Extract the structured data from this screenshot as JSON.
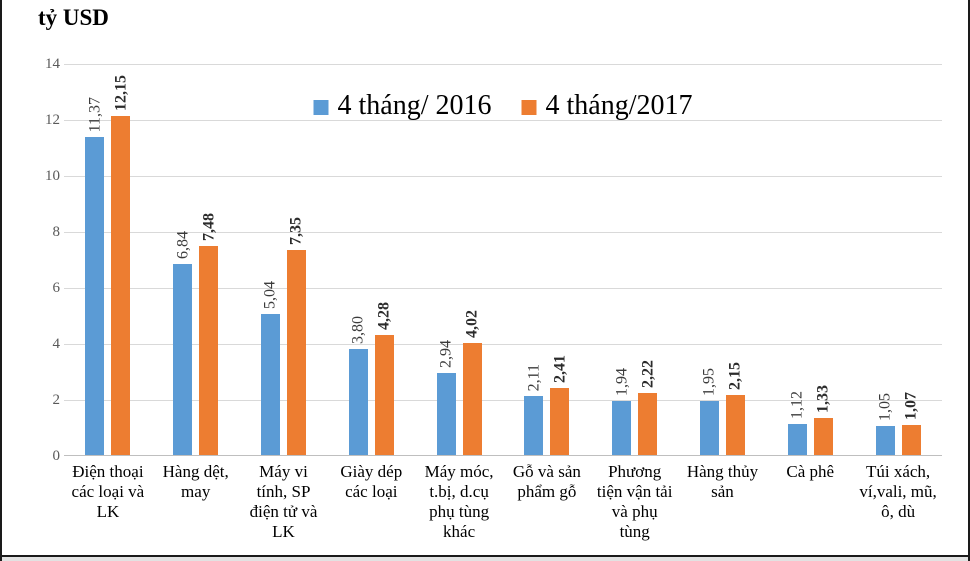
{
  "page": {
    "title": "tỷ USD"
  },
  "colors": {
    "series_2016": "#5b9bd5",
    "series_2017": "#ed7d31",
    "gridline": "#d9d9d9",
    "axis_line": "#bfbfbf",
    "tick_text": "#595959",
    "frame_border": "#1a1a1a"
  },
  "legend": {
    "items": [
      {
        "label": "4 tháng/ 2016",
        "color": "#5b9bd5"
      },
      {
        "label": "4 tháng/2017",
        "color": "#ed7d31"
      }
    ]
  },
  "y_axis": {
    "tick_labels": [
      "0",
      "2",
      "4",
      "6",
      "8",
      "10",
      "12",
      "14"
    ],
    "tick_values": [
      0,
      2,
      4,
      6,
      8,
      10,
      12,
      14
    ],
    "max": 14
  },
  "category_label_lines": [
    [
      "Điện thoại",
      "các loại và",
      "LK"
    ],
    [
      "Hàng dệt,",
      "may"
    ],
    [
      "Máy vi",
      "tính, SP",
      "điện tử và",
      "LK"
    ],
    [
      "Giày dép",
      "các loại"
    ],
    [
      "Máy móc,",
      "t.bị, d.cụ",
      "phụ tùng",
      "khác"
    ],
    [
      "Gỗ và sản",
      "phẩm gỗ"
    ],
    [
      "Phương",
      "tiện vận tải",
      "và phụ",
      "tùng"
    ],
    [
      "Hàng thủy",
      "sản"
    ],
    [
      "Cà phê"
    ],
    [
      "Túi xách,",
      "ví,vali, mũ,",
      "ô, dù"
    ]
  ],
  "chart_data": {
    "type": "bar",
    "title": "tỷ USD",
    "ylabel": "tỷ USD",
    "xlabel": "",
    "ylim": [
      0,
      14
    ],
    "grid": true,
    "legend_position": "top-center",
    "categories": [
      "Điện thoại các loại và LK",
      "Hàng dệt, may",
      "Máy vi tính, SP điện tử và LK",
      "Giày dép các loại",
      "Máy móc, t.bị, d.cụ phụ tùng khác",
      "Gỗ và sản phẩm gỗ",
      "Phương tiện vận tải và phụ tùng",
      "Hàng thủy sản",
      "Cà phê",
      "Túi xách, ví,vali, mũ, ô, dù"
    ],
    "series": [
      {
        "name": "4 tháng/ 2016",
        "color": "#5b9bd5",
        "values": [
          11.37,
          6.84,
          5.04,
          3.8,
          2.94,
          2.11,
          1.94,
          1.95,
          1.12,
          1.05
        ],
        "value_labels": [
          "11,37",
          "6,84",
          "5,04",
          "3,80",
          "2,94",
          "2,11",
          "1,94",
          "1,95",
          "1,12",
          "1,05"
        ]
      },
      {
        "name": "4 tháng/2017",
        "color": "#ed7d31",
        "values": [
          12.15,
          7.48,
          7.35,
          4.28,
          4.02,
          2.41,
          2.22,
          2.15,
          1.33,
          1.07
        ],
        "value_labels": [
          "12,15",
          "7,48",
          "7,35",
          "4,28",
          "4,02",
          "2,41",
          "2,22",
          "2,15",
          "1,33",
          "1,07"
        ]
      }
    ]
  }
}
